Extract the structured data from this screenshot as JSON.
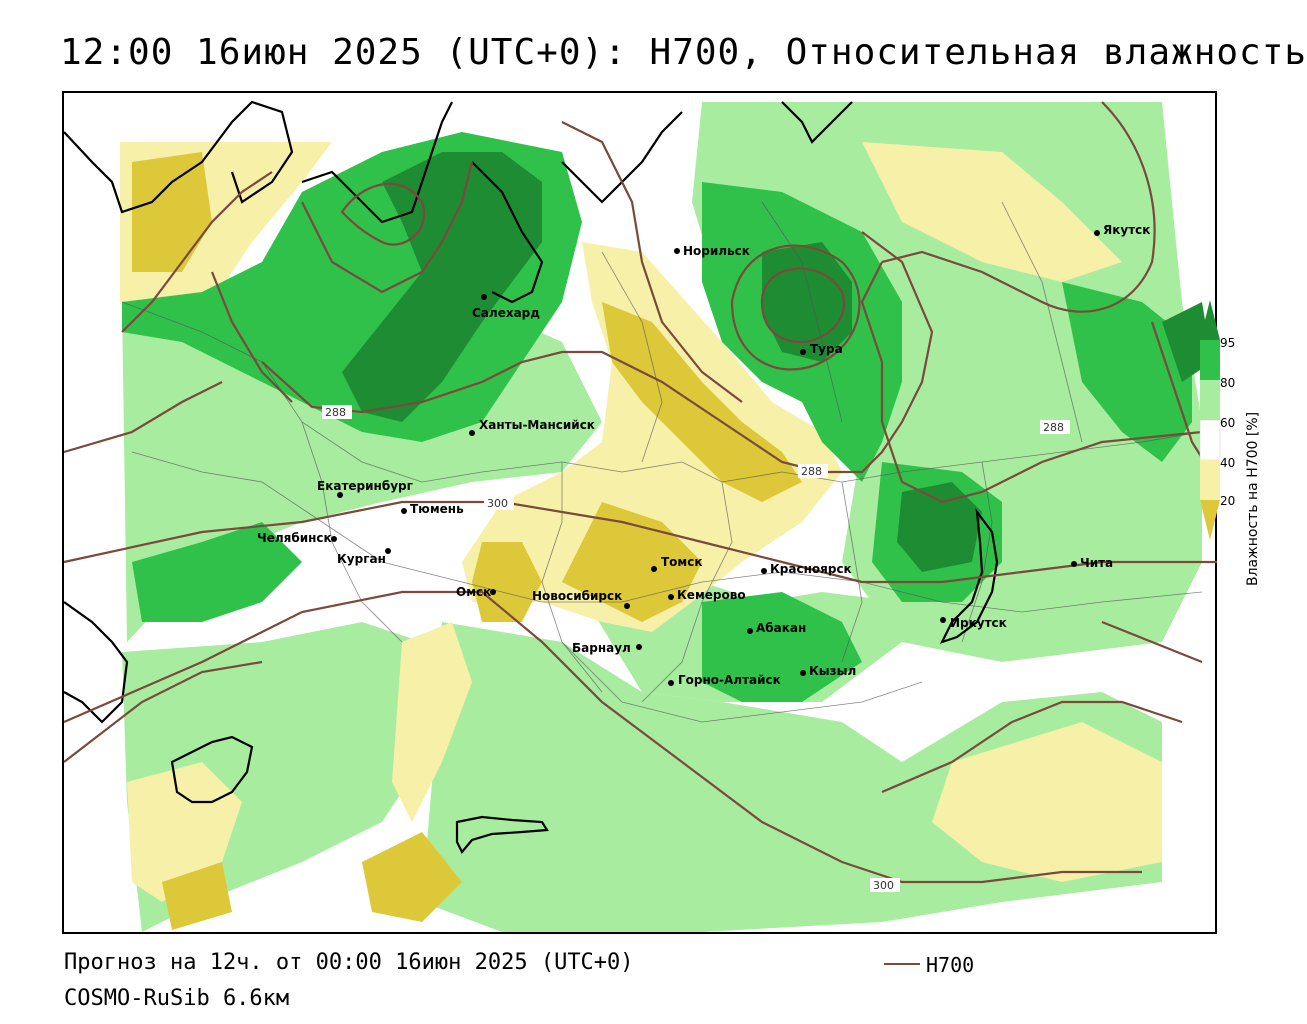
{
  "header": {
    "title": "12:00 16июн 2025 (UTC+0): H700, Относительная влажность"
  },
  "footer": {
    "forecast": "Прогноз на 12ч. от 00:00 16июн 2025 (UTC+0)",
    "model": "COSMO-RuSib 6.6км"
  },
  "legend": {
    "contour_label": "H700",
    "contour_color": "#7a4a3a"
  },
  "colorbar": {
    "title": "Влажность на H700 [%]",
    "ticks": [
      "95",
      "80",
      "60",
      "40",
      "20"
    ],
    "colors": {
      "band_95_plus": "#1e8c32",
      "band_80_95": "#2fc14a",
      "band_60_80": "#a8eca0",
      "band_40_60": "#ffffff",
      "band_20_40": "#f6f0a8",
      "band_0_20": "#ddc83a"
    }
  },
  "map": {
    "cities": [
      {
        "name": "Якутск"
      },
      {
        "name": "Норильск"
      },
      {
        "name": "Салехард"
      },
      {
        "name": "Тура"
      },
      {
        "name": "Ханты-Мансийск"
      },
      {
        "name": "Екатеринбург"
      },
      {
        "name": "Тюмень"
      },
      {
        "name": "Челябинск"
      },
      {
        "name": "Курган"
      },
      {
        "name": "Омск"
      },
      {
        "name": "Новосибирск"
      },
      {
        "name": "Томск"
      },
      {
        "name": "Кемерово"
      },
      {
        "name": "Красноярск"
      },
      {
        "name": "Барнаул"
      },
      {
        "name": "Абакан"
      },
      {
        "name": "Кызыл"
      },
      {
        "name": "Горно-Алтайск"
      },
      {
        "name": "Иркутск"
      },
      {
        "name": "Чита"
      }
    ],
    "contour_labels": [
      "288",
      "288",
      "288",
      "300",
      "300"
    ]
  }
}
